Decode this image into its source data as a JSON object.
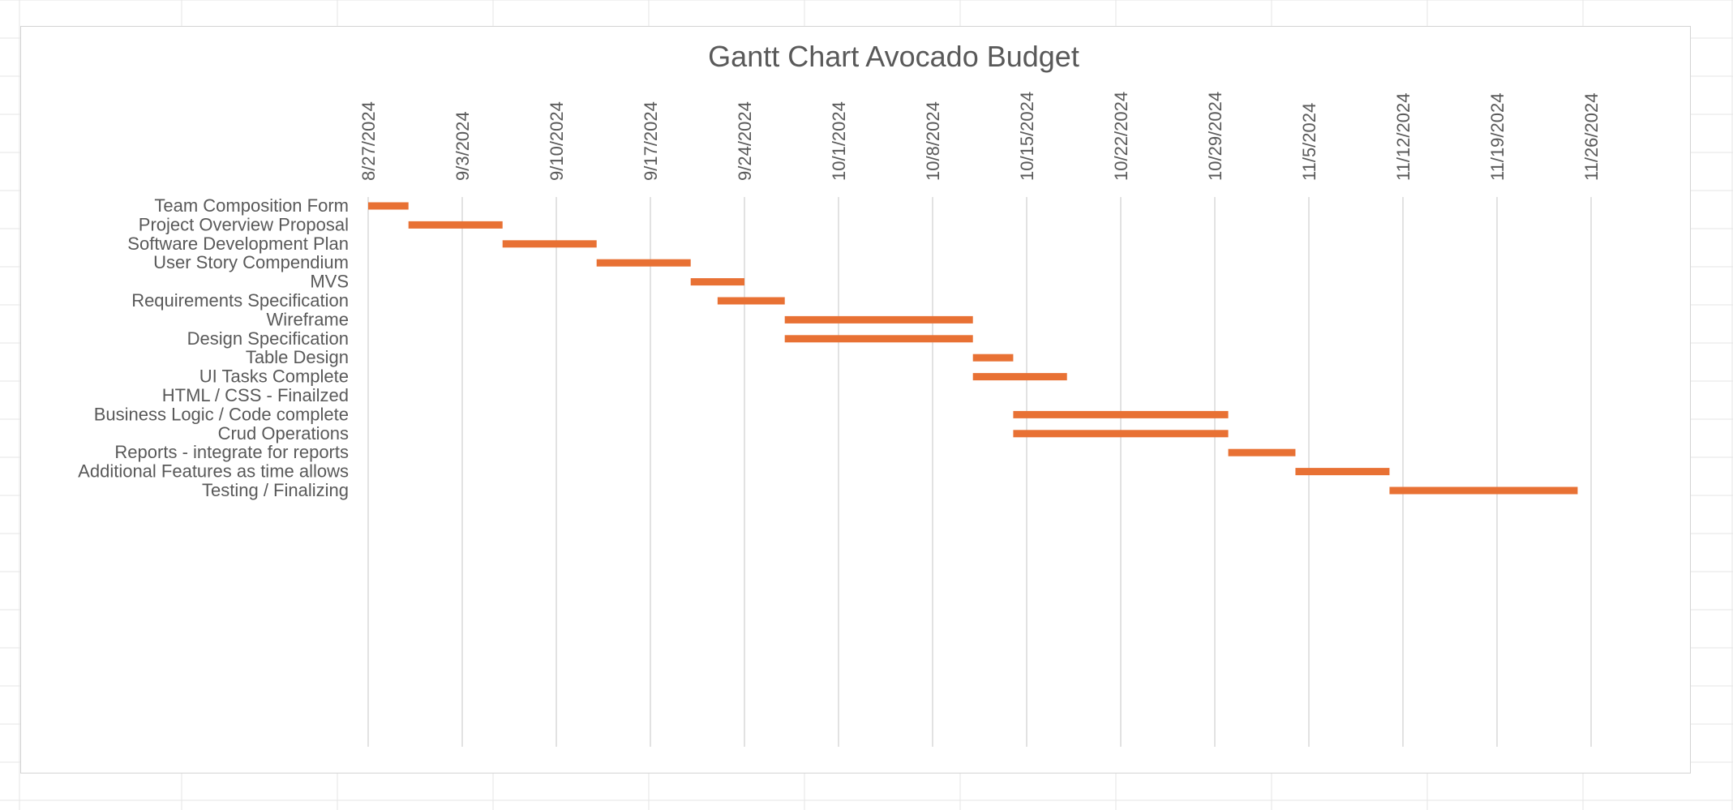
{
  "colors": {
    "bar": "#E87134",
    "gridline": "#d9d9d9",
    "text": "#595959",
    "sheet_grid": "#e6e6e6",
    "frame_border": "#d4d4d4"
  },
  "chart_data": {
    "type": "gantt",
    "title": "Gantt Chart Avocado Budget",
    "x_axis": {
      "type": "date",
      "position": "top",
      "tick_labels": [
        "8/27/2024",
        "9/3/2024",
        "9/10/2024",
        "9/17/2024",
        "9/24/2024",
        "10/1/2024",
        "10/8/2024",
        "10/15/2024",
        "10/22/2024",
        "10/29/2024",
        "11/5/2024",
        "11/12/2024",
        "11/19/2024",
        "11/26/2024"
      ],
      "range": [
        "2024-08-27",
        "2024-11-26"
      ],
      "gridlines": true
    },
    "tasks": [
      {
        "name": "Team Composition Form",
        "start": "2024-08-27",
        "end": "2024-08-30"
      },
      {
        "name": "Project Overview Proposal",
        "start": "2024-08-30",
        "end": "2024-09-06"
      },
      {
        "name": "Software Development Plan",
        "start": "2024-09-06",
        "end": "2024-09-13"
      },
      {
        "name": "User Story Compendium",
        "start": "2024-09-13",
        "end": "2024-09-20"
      },
      {
        "name": "MVS",
        "start": "2024-09-20",
        "end": "2024-09-24"
      },
      {
        "name": "Requirements Specification",
        "start": "2024-09-22",
        "end": "2024-09-27"
      },
      {
        "name": "Wireframe",
        "start": "2024-09-27",
        "end": "2024-10-11"
      },
      {
        "name": "Design Specification",
        "start": "2024-09-27",
        "end": "2024-10-11"
      },
      {
        "name": "Table Design",
        "start": "2024-10-11",
        "end": "2024-10-14"
      },
      {
        "name": "UI Tasks Complete",
        "start": "2024-10-11",
        "end": "2024-10-18"
      },
      {
        "name": "HTML / CSS - Finailzed",
        "start": null,
        "end": null
      },
      {
        "name": "Business Logic / Code complete",
        "start": "2024-10-14",
        "end": "2024-10-30"
      },
      {
        "name": "Crud Operations",
        "start": "2024-10-14",
        "end": "2024-10-30"
      },
      {
        "name": "Reports - integrate for reports",
        "start": "2024-10-30",
        "end": "2024-11-04"
      },
      {
        "name": "Additional Features as time allows",
        "start": "2024-11-04",
        "end": "2024-11-11"
      },
      {
        "name": "Testing / Finalizing",
        "start": "2024-11-11",
        "end": "2024-11-25"
      }
    ]
  }
}
